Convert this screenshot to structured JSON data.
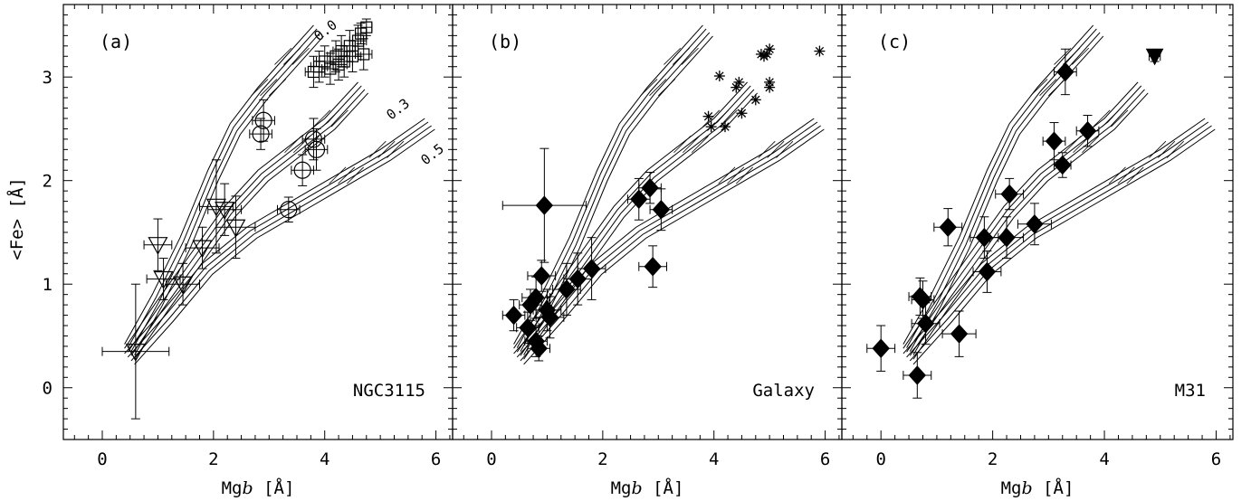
{
  "figure": {
    "ylabel": "<Fe> [Å]",
    "xlabel_prefix": "Mg",
    "xlabel_italic": "b",
    "xlabel_suffix": " [Å]",
    "xticks": [
      "0",
      "2",
      "4",
      "6"
    ],
    "yticks": [
      "0",
      "1",
      "2",
      "3"
    ]
  },
  "chart_data": [
    {
      "type": "scatter",
      "panel": "(a)",
      "name": "NGC3115",
      "xlim": [
        -0.7,
        6.3
      ],
      "ylim": [
        -0.5,
        3.7
      ],
      "curve_labels": [
        "0.0",
        "0.3",
        "0.5"
      ],
      "series": [
        {
          "marker": "triangle-down",
          "points": [
            {
              "x": 0.6,
              "y": 0.35,
              "xerr": 0.6,
              "yerr": 0.65
            },
            {
              "x": 1.0,
              "y": 1.38,
              "xerr": 0.25,
              "yerr": 0.25
            },
            {
              "x": 1.1,
              "y": 1.05,
              "xerr": 0.3,
              "yerr": 0.2
            },
            {
              "x": 1.45,
              "y": 1.0,
              "xerr": 0.3,
              "yerr": 0.2
            },
            {
              "x": 1.8,
              "y": 1.35,
              "xerr": 0.3,
              "yerr": 0.2
            },
            {
              "x": 2.05,
              "y": 1.75,
              "xerr": 0.3,
              "yerr": 0.45
            },
            {
              "x": 2.2,
              "y": 1.72,
              "xerr": 0.3,
              "yerr": 0.25
            },
            {
              "x": 2.4,
              "y": 1.55,
              "xerr": 0.35,
              "yerr": 0.3
            }
          ]
        },
        {
          "marker": "circle",
          "points": [
            {
              "x": 2.85,
              "y": 2.45,
              "xerr": 0.2,
              "yerr": 0.15
            },
            {
              "x": 2.9,
              "y": 2.58,
              "xerr": 0.2,
              "yerr": 0.2
            },
            {
              "x": 3.35,
              "y": 1.72,
              "xerr": 0.2,
              "yerr": 0.12
            },
            {
              "x": 3.6,
              "y": 2.1,
              "xerr": 0.2,
              "yerr": 0.15
            },
            {
              "x": 3.8,
              "y": 2.4,
              "xerr": 0.2,
              "yerr": 0.2
            },
            {
              "x": 3.85,
              "y": 2.3,
              "xerr": 0.2,
              "yerr": 0.2
            }
          ]
        },
        {
          "marker": "square",
          "points": [
            {
              "x": 3.8,
              "y": 3.05,
              "xerr": 0.15,
              "yerr": 0.15
            },
            {
              "x": 3.9,
              "y": 3.1,
              "xerr": 0.15,
              "yerr": 0.15
            },
            {
              "x": 4.0,
              "y": 3.15,
              "xerr": 0.15,
              "yerr": 0.15
            },
            {
              "x": 4.1,
              "y": 3.08,
              "xerr": 0.15,
              "yerr": 0.15
            },
            {
              "x": 4.2,
              "y": 3.2,
              "xerr": 0.15,
              "yerr": 0.15
            },
            {
              "x": 4.3,
              "y": 3.25,
              "xerr": 0.15,
              "yerr": 0.15
            },
            {
              "x": 4.35,
              "y": 3.15,
              "xerr": 0.15,
              "yerr": 0.15
            },
            {
              "x": 4.45,
              "y": 3.3,
              "xerr": 0.15,
              "yerr": 0.15
            },
            {
              "x": 4.5,
              "y": 3.2,
              "xerr": 0.15,
              "yerr": 0.15
            },
            {
              "x": 4.6,
              "y": 3.35,
              "xerr": 0.15,
              "yerr": 0.15
            },
            {
              "x": 4.65,
              "y": 3.42,
              "xerr": 0.1,
              "yerr": 0.1
            },
            {
              "x": 4.75,
              "y": 3.48,
              "xerr": 0.1,
              "yerr": 0.08
            },
            {
              "x": 4.7,
              "y": 3.22,
              "xerr": 0.15,
              "yerr": 0.15
            },
            {
              "x": 4.25,
              "y": 3.12,
              "xerr": 0.15,
              "yerr": 0.15
            }
          ]
        }
      ]
    },
    {
      "type": "scatter",
      "panel": "(b)",
      "name": "Galaxy",
      "xlim": [
        -0.7,
        6.3
      ],
      "ylim": [
        -0.5,
        3.7
      ],
      "series": [
        {
          "marker": "diamond",
          "points": [
            {
              "x": 0.4,
              "y": 0.7,
              "xerr": 0.2,
              "yerr": 0.15
            },
            {
              "x": 0.65,
              "y": 0.58,
              "xerr": 0.2,
              "yerr": 0.15
            },
            {
              "x": 0.7,
              "y": 0.8,
              "xerr": 0.2,
              "yerr": 0.15
            },
            {
              "x": 0.8,
              "y": 0.87,
              "xerr": 0.25,
              "yerr": 0.2
            },
            {
              "x": 0.8,
              "y": 0.45,
              "xerr": 0.2,
              "yerr": 0.15
            },
            {
              "x": 0.85,
              "y": 0.38,
              "xerr": 0.2,
              "yerr": 0.12
            },
            {
              "x": 0.9,
              "y": 1.08,
              "xerr": 0.25,
              "yerr": 0.15
            },
            {
              "x": 0.95,
              "y": 1.76,
              "xerr": 0.75,
              "yerr": 0.55
            },
            {
              "x": 1.0,
              "y": 0.75,
              "xerr": 0.25,
              "yerr": 0.2
            },
            {
              "x": 1.05,
              "y": 0.68,
              "xerr": 0.25,
              "yerr": 0.2
            },
            {
              "x": 1.35,
              "y": 0.95,
              "xerr": 0.25,
              "yerr": 0.25
            },
            {
              "x": 1.55,
              "y": 1.05,
              "xerr": 0.25,
              "yerr": 0.25
            },
            {
              "x": 1.8,
              "y": 1.15,
              "xerr": 0.25,
              "yerr": 0.3
            },
            {
              "x": 2.65,
              "y": 1.82,
              "xerr": 0.2,
              "yerr": 0.2
            },
            {
              "x": 2.85,
              "y": 1.93,
              "xerr": 0.2,
              "yerr": 0.15
            },
            {
              "x": 2.9,
              "y": 1.17,
              "xerr": 0.25,
              "yerr": 0.2
            },
            {
              "x": 3.05,
              "y": 1.72,
              "xerr": 0.2,
              "yerr": 0.2
            }
          ]
        },
        {
          "marker": "asterisk",
          "points": [
            {
              "x": 3.9,
              "y": 2.62
            },
            {
              "x": 3.95,
              "y": 2.52
            },
            {
              "x": 4.1,
              "y": 3.01
            },
            {
              "x": 4.2,
              "y": 2.52
            },
            {
              "x": 4.4,
              "y": 2.9
            },
            {
              "x": 4.45,
              "y": 2.95
            },
            {
              "x": 4.5,
              "y": 2.65
            },
            {
              "x": 4.75,
              "y": 2.78
            },
            {
              "x": 4.9,
              "y": 3.2
            },
            {
              "x": 4.95,
              "y": 3.22
            },
            {
              "x": 4.85,
              "y": 3.22
            },
            {
              "x": 5.0,
              "y": 3.27
            },
            {
              "x": 5.0,
              "y": 2.95
            },
            {
              "x": 5.0,
              "y": 2.9
            },
            {
              "x": 5.9,
              "y": 3.25
            }
          ]
        }
      ]
    },
    {
      "type": "scatter",
      "panel": "(c)",
      "name": "M31",
      "xlim": [
        -0.7,
        6.3
      ],
      "ylim": [
        -0.5,
        3.7
      ],
      "series": [
        {
          "marker": "diamond",
          "points": [
            {
              "x": 0.0,
              "y": 0.38,
              "xerr": 0.25,
              "yerr": 0.22
            },
            {
              "x": 0.65,
              "y": 0.12,
              "xerr": 0.25,
              "yerr": 0.22
            },
            {
              "x": 0.7,
              "y": 0.88,
              "xerr": 0.2,
              "yerr": 0.18
            },
            {
              "x": 0.75,
              "y": 0.85,
              "xerr": 0.2,
              "yerr": 0.18
            },
            {
              "x": 0.8,
              "y": 0.62,
              "xerr": 0.25,
              "yerr": 0.2
            },
            {
              "x": 1.2,
              "y": 1.55,
              "xerr": 0.25,
              "yerr": 0.18
            },
            {
              "x": 1.4,
              "y": 0.52,
              "xerr": 0.3,
              "yerr": 0.22
            },
            {
              "x": 1.85,
              "y": 1.45,
              "xerr": 0.25,
              "yerr": 0.2
            },
            {
              "x": 1.9,
              "y": 1.12,
              "xerr": 0.25,
              "yerr": 0.2
            },
            {
              "x": 2.25,
              "y": 1.45,
              "xerr": 0.3,
              "yerr": 0.2
            },
            {
              "x": 2.3,
              "y": 1.87,
              "xerr": 0.25,
              "yerr": 0.15
            },
            {
              "x": 2.75,
              "y": 1.58,
              "xerr": 0.3,
              "yerr": 0.2
            },
            {
              "x": 3.1,
              "y": 2.38,
              "xerr": 0.2,
              "yerr": 0.18
            },
            {
              "x": 3.25,
              "y": 2.15,
              "xerr": 0.15,
              "yerr": 0.12
            },
            {
              "x": 3.3,
              "y": 3.05,
              "xerr": 0.2,
              "yerr": 0.22
            },
            {
              "x": 3.7,
              "y": 2.48,
              "xerr": 0.2,
              "yerr": 0.15
            }
          ]
        },
        {
          "marker": "triangle-down-filled",
          "points": [
            {
              "x": 4.9,
              "y": 3.2,
              "xerr": 0.1,
              "yerr": 0.05
            }
          ]
        }
      ]
    }
  ],
  "model_grid": {
    "description": "stellar population model tracks (three sets per panel)",
    "tracks": [
      [
        [
          0.4,
          0.42
        ],
        [
          0.9,
          0.9
        ],
        [
          1.4,
          1.45
        ],
        [
          1.9,
          2.1
        ],
        [
          2.3,
          2.55
        ],
        [
          2.8,
          2.9
        ],
        [
          3.3,
          3.2
        ],
        [
          3.8,
          3.5
        ]
      ],
      [
        [
          0.4,
          0.38
        ],
        [
          1.0,
          0.85
        ],
        [
          1.6,
          1.3
        ],
        [
          2.2,
          1.75
        ],
        [
          2.8,
          2.1
        ],
        [
          3.4,
          2.35
        ],
        [
          4.0,
          2.6
        ],
        [
          4.6,
          2.95
        ]
      ],
      [
        [
          0.4,
          0.33
        ],
        [
          1.1,
          0.75
        ],
        [
          1.8,
          1.2
        ],
        [
          2.6,
          1.55
        ],
        [
          3.4,
          1.8
        ],
        [
          4.2,
          2.05
        ],
        [
          5.0,
          2.3
        ],
        [
          5.8,
          2.6
        ]
      ]
    ]
  }
}
